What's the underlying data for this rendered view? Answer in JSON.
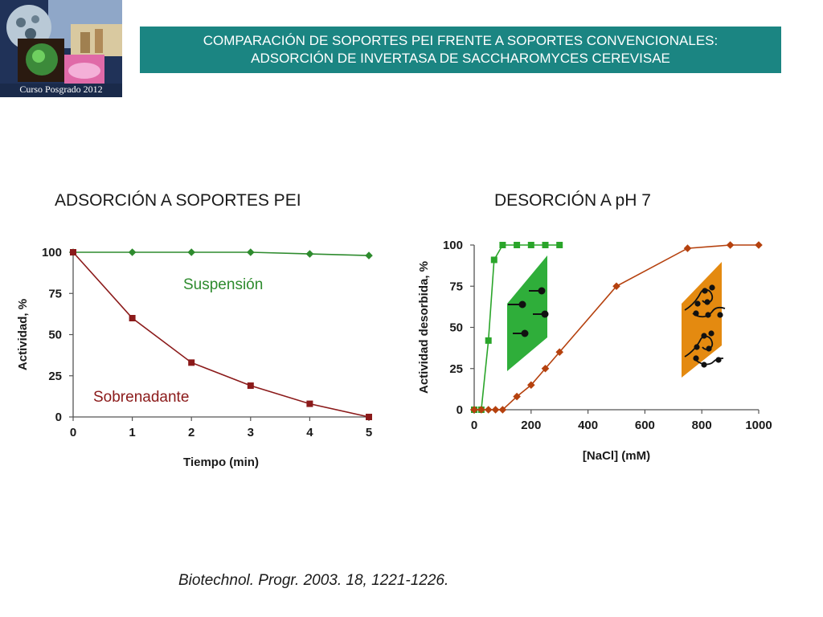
{
  "header": {
    "logo_caption": "Curso Posgrado 2012",
    "title_line1": "COMPARACIÓN DE SOPORTES PEI  FRENTE A SOPORTES CONVENCIONALES:",
    "title_line2": "ADSORCIÓN DE INVERTASA DE SACCHAROMYCES CEREVISAE",
    "banner_color": "#1b8582"
  },
  "sections": {
    "left_title": "ADSORCIÓN A SOPORTES PEI",
    "right_title": "DESORCIÓN A pH 7"
  },
  "citation": "Biotechnol. Progr. 2003. 18, 1221-1226.",
  "chart_data": [
    {
      "type": "line",
      "xlabel": "Tiempo (min)",
      "ylabel": "Actividad, %",
      "xlim": [
        0,
        5
      ],
      "ylim": [
        0,
        100
      ],
      "x_ticks": [
        "0",
        "1",
        "2",
        "3",
        "4",
        "5"
      ],
      "y_ticks": [
        "0",
        "25",
        "50",
        "75",
        "100"
      ],
      "grid": false,
      "legend": "inline-labels",
      "series": [
        {
          "name": "Suspensión",
          "color": "#2e8b2e",
          "marker": "diamond",
          "x": [
            0,
            1,
            2,
            3,
            4,
            5
          ],
          "y": [
            100,
            100,
            100,
            100,
            99,
            98
          ]
        },
        {
          "name": "Sobrenadante",
          "color": "#8b1a1a",
          "marker": "square",
          "x": [
            0,
            1,
            2,
            3,
            4,
            5
          ],
          "y": [
            100,
            60,
            33,
            19,
            8,
            0
          ]
        }
      ]
    },
    {
      "type": "line",
      "xlabel": "[NaCl] (mM)",
      "ylabel": "Actividad desorbida, %",
      "xlim": [
        0,
        1000
      ],
      "ylim": [
        0,
        100
      ],
      "x_ticks": [
        "0",
        "200",
        "400",
        "600",
        "800",
        "1000"
      ],
      "y_ticks": [
        "0",
        "25",
        "50",
        "75",
        "100"
      ],
      "grid": false,
      "legend": "none",
      "series": [
        {
          "color": "#2aa52a",
          "marker": "square",
          "x": [
            0,
            25,
            50,
            70,
            100,
            150,
            200,
            250,
            300
          ],
          "y": [
            0,
            0,
            42,
            91,
            100,
            100,
            100,
            100,
            100
          ]
        },
        {
          "color": "#b5410e",
          "marker": "diamond",
          "x": [
            0,
            25,
            50,
            75,
            100,
            150,
            200,
            250,
            300,
            500,
            750,
            900,
            1000
          ],
          "y": [
            0,
            0,
            0,
            0,
            0,
            8,
            15,
            25,
            35,
            75,
            98,
            100,
            100
          ]
        }
      ],
      "illustrations": [
        {
          "name": "short-polymer-support",
          "color": "#2fae3a"
        },
        {
          "name": "long-polymer-support",
          "color": "#e48a10"
        }
      ]
    }
  ]
}
